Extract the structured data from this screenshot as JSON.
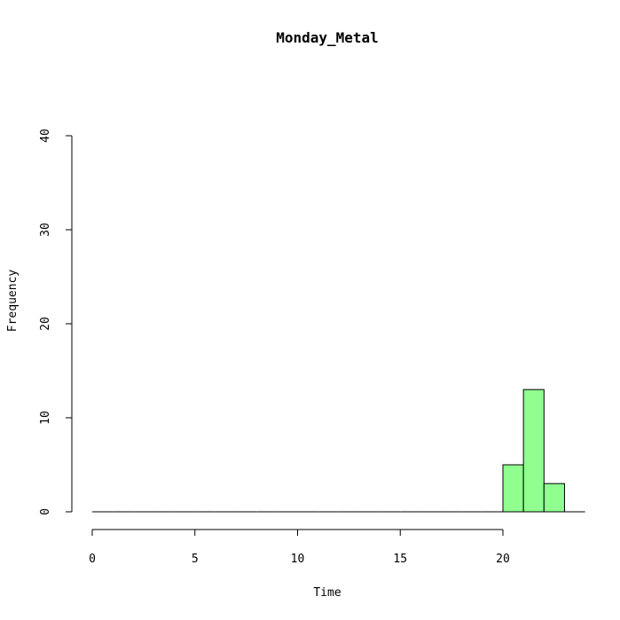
{
  "chart_data": {
    "type": "bar",
    "title": "Monday_Metal",
    "xlabel": "Time",
    "ylabel": "Frequency",
    "xlim": [
      0,
      24
    ],
    "ylim": [
      0,
      40
    ],
    "x_ticks": [
      0,
      5,
      10,
      15,
      20
    ],
    "y_ticks": [
      0,
      10,
      20,
      30,
      40
    ],
    "bins": [
      {
        "start": 0,
        "end": 1,
        "count": 0
      },
      {
        "start": 1,
        "end": 2,
        "count": 0
      },
      {
        "start": 2,
        "end": 3,
        "count": 0
      },
      {
        "start": 3,
        "end": 4,
        "count": 0
      },
      {
        "start": 4,
        "end": 5,
        "count": 0
      },
      {
        "start": 5,
        "end": 6,
        "count": 0
      },
      {
        "start": 6,
        "end": 7,
        "count": 0
      },
      {
        "start": 7,
        "end": 8,
        "count": 0
      },
      {
        "start": 8,
        "end": 9,
        "count": 0
      },
      {
        "start": 9,
        "end": 10,
        "count": 0
      },
      {
        "start": 10,
        "end": 11,
        "count": 0
      },
      {
        "start": 11,
        "end": 12,
        "count": 0
      },
      {
        "start": 12,
        "end": 13,
        "count": 0
      },
      {
        "start": 13,
        "end": 14,
        "count": 0
      },
      {
        "start": 14,
        "end": 15,
        "count": 0
      },
      {
        "start": 15,
        "end": 16,
        "count": 0
      },
      {
        "start": 16,
        "end": 17,
        "count": 0
      },
      {
        "start": 17,
        "end": 18,
        "count": 0
      },
      {
        "start": 18,
        "end": 19,
        "count": 0
      },
      {
        "start": 19,
        "end": 20,
        "count": 0
      },
      {
        "start": 20,
        "end": 21,
        "count": 5
      },
      {
        "start": 21,
        "end": 22,
        "count": 13
      },
      {
        "start": 22,
        "end": 23,
        "count": 3
      }
    ],
    "bar_color": "#90ff90",
    "grid": false,
    "legend": "none"
  }
}
